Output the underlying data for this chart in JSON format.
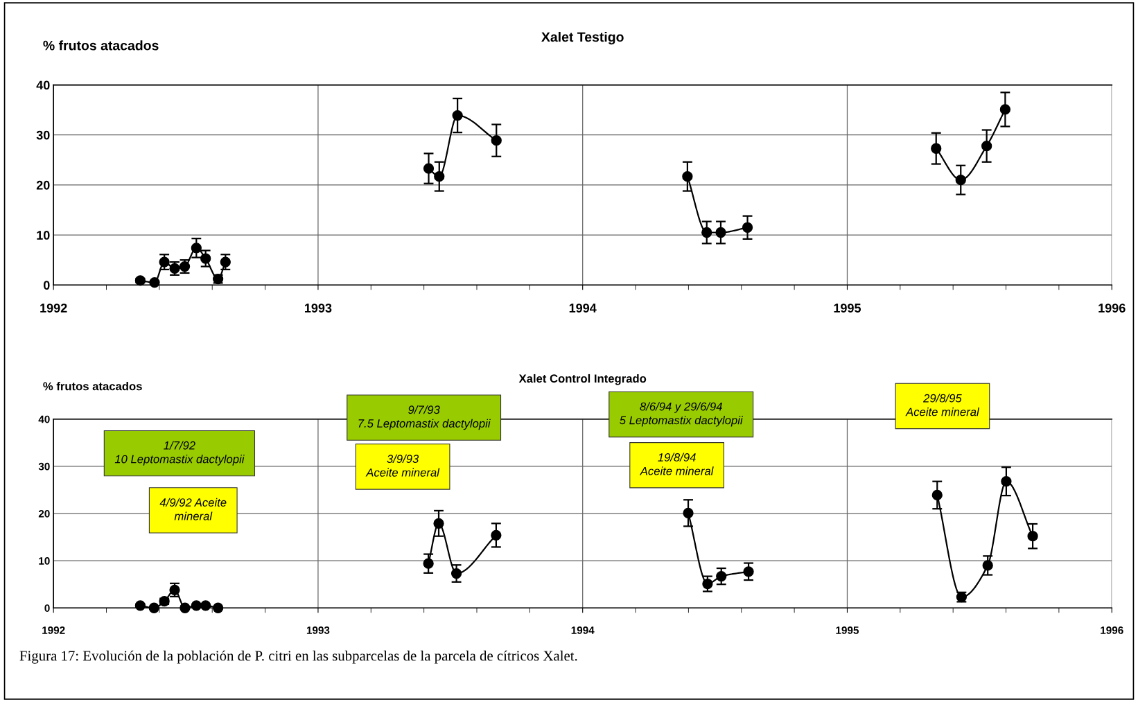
{
  "chart_data": [
    {
      "type": "line",
      "title": "Xalet Testigo",
      "ylabel": "% frutos atacados",
      "xlim": [
        1992,
        1996
      ],
      "ylim": [
        0,
        40
      ],
      "xticks": [
        1992,
        {
          "value": 1992.2,
          "label": null
        },
        {
          "value": 1992.4,
          "label": null
        },
        {
          "value": 1992.6,
          "label": null
        },
        {
          "value": 1992.8,
          "label": null
        },
        1993,
        {
          "value": 1993.2,
          "label": null
        },
        {
          "value": 1993.4,
          "label": null
        },
        {
          "value": 1993.6,
          "label": null
        },
        {
          "value": 1993.8,
          "label": null
        },
        1994,
        {
          "value": 1994.2,
          "label": null
        },
        {
          "value": 1994.4,
          "label": null
        },
        {
          "value": 1994.6,
          "label": null
        },
        {
          "value": 1994.8,
          "label": null
        },
        1995,
        {
          "value": 1995.2,
          "label": null
        },
        {
          "value": 1995.4,
          "label": null
        },
        {
          "value": 1995.6,
          "label": null
        },
        {
          "value": 1995.8,
          "label": null
        },
        1996
      ],
      "yticks": [
        0,
        10,
        20,
        30,
        40
      ],
      "grid": true,
      "marker": "circle",
      "line_style": "solid",
      "series": [
        {
          "color": "#000000",
          "x": [
            1992.328,
            1992.382,
            1992.419,
            1992.458,
            1992.496,
            1992.54,
            1992.575,
            1992.622,
            1992.65
          ],
          "values": [
            0.9,
            0.5,
            4.6,
            3.3,
            3.7,
            7.4,
            5.3,
            1.2,
            4.6
          ],
          "errors": [
            0.4,
            0.3,
            1.5,
            1.3,
            1.3,
            1.9,
            1.6,
            0.8,
            1.5
          ]
        },
        {
          "color": "#000000",
          "x": [
            1993.418,
            1993.458,
            1993.527,
            1993.674
          ],
          "values": [
            23.3,
            21.7,
            33.9,
            28.9
          ],
          "errors": [
            3.0,
            2.9,
            3.4,
            3.2
          ]
        },
        {
          "color": "#000000",
          "x": [
            1994.396,
            1994.469,
            1994.522,
            1994.623
          ],
          "values": [
            21.7,
            10.5,
            10.5,
            11.5
          ],
          "errors": [
            2.9,
            2.2,
            2.2,
            2.3
          ]
        },
        {
          "color": "#000000",
          "x": [
            1995.336,
            1995.429,
            1995.527,
            1995.597
          ],
          "values": [
            27.3,
            21.0,
            27.8,
            35.1
          ],
          "errors": [
            3.1,
            2.9,
            3.2,
            3.4
          ]
        }
      ]
    },
    {
      "type": "line",
      "title": "Xalet Control Integrado",
      "ylabel": "% frutos atacados",
      "xlim": [
        1992,
        1996
      ],
      "ylim": [
        0,
        40
      ],
      "xticks": [
        1992,
        {
          "value": 1992.2,
          "label": null
        },
        {
          "value": 1992.4,
          "label": null
        },
        {
          "value": 1992.6,
          "label": null
        },
        {
          "value": 1992.8,
          "label": null
        },
        1993,
        {
          "value": 1993.2,
          "label": null
        },
        {
          "value": 1993.4,
          "label": null
        },
        {
          "value": 1993.6,
          "label": null
        },
        {
          "value": 1993.8,
          "label": null
        },
        1994,
        {
          "value": 1994.2,
          "label": null
        },
        {
          "value": 1994.4,
          "label": null
        },
        {
          "value": 1994.6,
          "label": null
        },
        {
          "value": 1994.8,
          "label": null
        },
        1995,
        {
          "value": 1995.2,
          "label": null
        },
        {
          "value": 1995.4,
          "label": null
        },
        {
          "value": 1995.6,
          "label": null
        },
        {
          "value": 1995.8,
          "label": null
        },
        1996
      ],
      "yticks": [
        0,
        10,
        20,
        30,
        40
      ],
      "grid": true,
      "marker": "circle",
      "line_style": "solid",
      "series": [
        {
          "color": "#000000",
          "x": [
            1992.328,
            1992.38,
            1992.419,
            1992.458,
            1992.497,
            1992.54,
            1992.575,
            1992.622
          ],
          "values": [
            0.5,
            0,
            1.4,
            3.8,
            0,
            0.5,
            0.5,
            0
          ],
          "errors": [
            0.3,
            null,
            0.6,
            1.4,
            null,
            null,
            null,
            null
          ]
        },
        {
          "color": "#000000",
          "x": [
            1993.417,
            1993.456,
            1993.523,
            1993.673
          ],
          "values": [
            9.4,
            17.9,
            7.3,
            15.4
          ],
          "errors": [
            2.0,
            2.7,
            1.8,
            2.5
          ]
        },
        {
          "color": "#000000",
          "x": [
            1994.399,
            1994.472,
            1994.524,
            1994.627
          ],
          "values": [
            20.1,
            5.1,
            6.7,
            7.7
          ],
          "errors": [
            2.8,
            1.6,
            1.7,
            1.8
          ]
        },
        {
          "color": "#000000",
          "x": [
            1995.34,
            1995.432,
            1995.531,
            1995.601,
            1995.701
          ],
          "values": [
            23.9,
            2.3,
            9.0,
            26.8,
            15.2
          ],
          "errors": [
            2.9,
            1.0,
            2.0,
            3.0,
            2.6
          ]
        }
      ],
      "annotations": [
        "1/7/92\n10 Leptomastix dactylopii",
        "4/9/92 Aceite\nmineral",
        "9/7/93\n7.5 Leptomastix dactylopii",
        "3/9/93\nAceite mineral",
        "8/6/94 y 29/6/94\n5 Leptomastix dactylopii",
        "19/8/94\nAceite mineral",
        "29/8/95\nAceite mineral",
        "Figura 17: Evolución de la población de P. citri en las subparcelas de la parcela de cítricos Xalet."
      ]
    }
  ]
}
